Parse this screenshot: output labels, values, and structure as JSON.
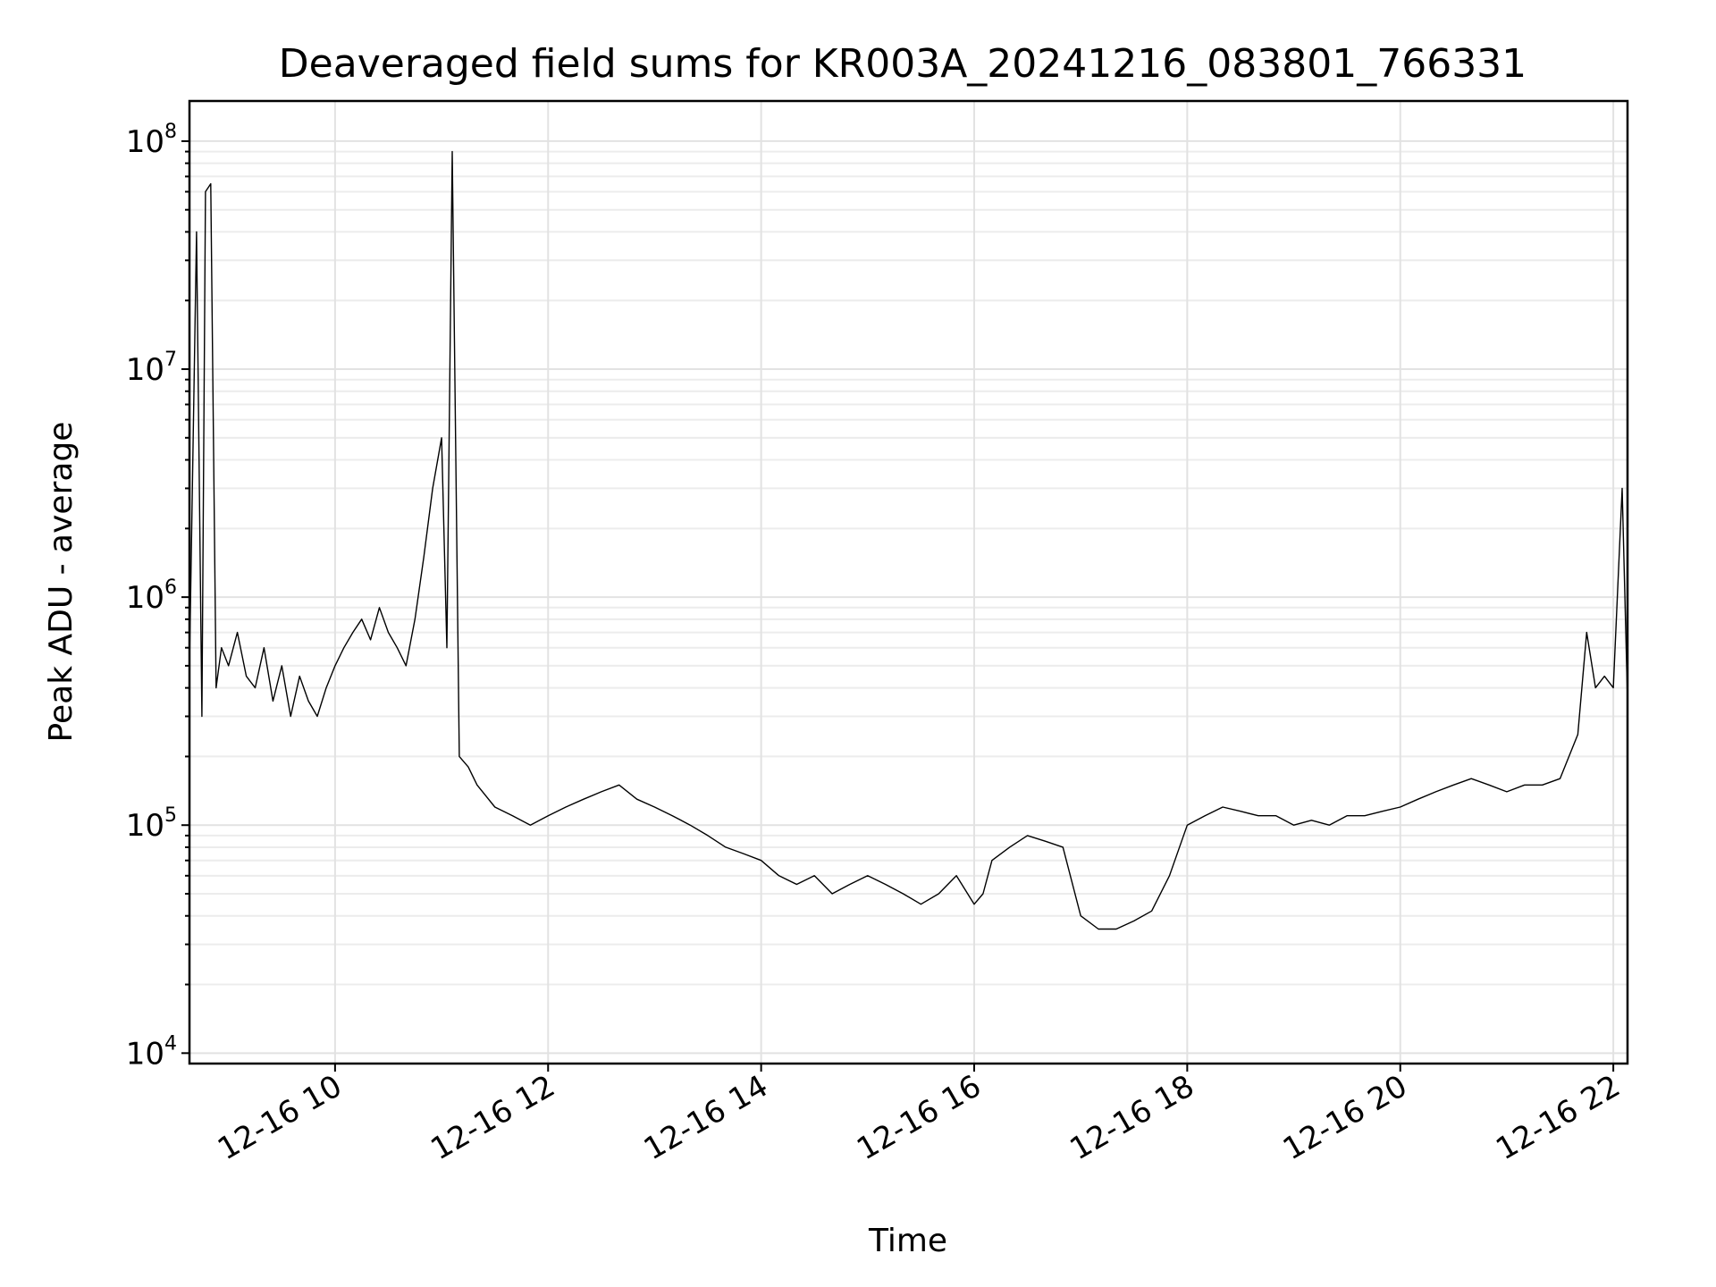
{
  "chart_data": {
    "type": "line",
    "title": "Deaveraged field sums for KR003A_20241216_083801_766331",
    "xlabel": "Time",
    "ylabel": "Peak ADU - average",
    "yscale": "log",
    "xlim": [
      "2024-12-16 08:38",
      "2024-12-16 22:08"
    ],
    "ylim": [
      9000,
      150000000
    ],
    "grid": true,
    "x_ticks": [
      {
        "value": "2024-12-16 10:00",
        "label": "12-16 10"
      },
      {
        "value": "2024-12-16 12:00",
        "label": "12-16 12"
      },
      {
        "value": "2024-12-16 14:00",
        "label": "12-16 14"
      },
      {
        "value": "2024-12-16 16:00",
        "label": "12-16 16"
      },
      {
        "value": "2024-12-16 18:00",
        "label": "12-16 18"
      },
      {
        "value": "2024-12-16 20:00",
        "label": "12-16 20"
      },
      {
        "value": "2024-12-16 22:00",
        "label": "12-16 22"
      }
    ],
    "y_ticks": [
      {
        "value": 10000,
        "base": "10",
        "exp": "4"
      },
      {
        "value": 100000,
        "base": "10",
        "exp": "5"
      },
      {
        "value": 1000000,
        "base": "10",
        "exp": "6"
      },
      {
        "value": 10000000,
        "base": "10",
        "exp": "7"
      },
      {
        "value": 100000000,
        "base": "10",
        "exp": "8"
      }
    ],
    "series_color": "#000000",
    "series": [
      {
        "x": [
          "2024-12-16 08:38",
          "2024-12-16 08:42",
          "2024-12-16 08:45",
          "2024-12-16 08:47",
          "2024-12-16 08:50",
          "2024-12-16 08:53",
          "2024-12-16 08:56",
          "2024-12-16 09:00",
          "2024-12-16 09:05",
          "2024-12-16 09:10",
          "2024-12-16 09:15",
          "2024-12-16 09:20",
          "2024-12-16 09:25",
          "2024-12-16 09:30",
          "2024-12-16 09:35",
          "2024-12-16 09:40",
          "2024-12-16 09:45",
          "2024-12-16 09:50",
          "2024-12-16 09:55",
          "2024-12-16 10:00",
          "2024-12-16 10:05",
          "2024-12-16 10:10",
          "2024-12-16 10:15",
          "2024-12-16 10:20",
          "2024-12-16 10:25",
          "2024-12-16 10:30",
          "2024-12-16 10:35",
          "2024-12-16 10:40",
          "2024-12-16 10:45",
          "2024-12-16 10:50",
          "2024-12-16 10:55",
          "2024-12-16 11:00",
          "2024-12-16 11:03",
          "2024-12-16 11:06",
          "2024-12-16 11:10",
          "2024-12-16 11:15",
          "2024-12-16 11:20",
          "2024-12-16 11:30",
          "2024-12-16 11:40",
          "2024-12-16 11:50",
          "2024-12-16 12:00",
          "2024-12-16 12:10",
          "2024-12-16 12:20",
          "2024-12-16 12:30",
          "2024-12-16 12:40",
          "2024-12-16 12:50",
          "2024-12-16 13:00",
          "2024-12-16 13:10",
          "2024-12-16 13:20",
          "2024-12-16 13:30",
          "2024-12-16 13:40",
          "2024-12-16 13:50",
          "2024-12-16 14:00",
          "2024-12-16 14:10",
          "2024-12-16 14:20",
          "2024-12-16 14:30",
          "2024-12-16 14:40",
          "2024-12-16 14:50",
          "2024-12-16 15:00",
          "2024-12-16 15:10",
          "2024-12-16 15:20",
          "2024-12-16 15:30",
          "2024-12-16 15:40",
          "2024-12-16 15:50",
          "2024-12-16 16:00",
          "2024-12-16 16:05",
          "2024-12-16 16:10",
          "2024-12-16 16:20",
          "2024-12-16 16:30",
          "2024-12-16 16:40",
          "2024-12-16 16:50",
          "2024-12-16 17:00",
          "2024-12-16 17:10",
          "2024-12-16 17:20",
          "2024-12-16 17:30",
          "2024-12-16 17:40",
          "2024-12-16 17:50",
          "2024-12-16 18:00",
          "2024-12-16 18:10",
          "2024-12-16 18:20",
          "2024-12-16 18:30",
          "2024-12-16 18:40",
          "2024-12-16 18:50",
          "2024-12-16 19:00",
          "2024-12-16 19:10",
          "2024-12-16 19:20",
          "2024-12-16 19:30",
          "2024-12-16 19:40",
          "2024-12-16 19:50",
          "2024-12-16 20:00",
          "2024-12-16 20:10",
          "2024-12-16 20:20",
          "2024-12-16 20:30",
          "2024-12-16 20:40",
          "2024-12-16 20:50",
          "2024-12-16 21:00",
          "2024-12-16 21:10",
          "2024-12-16 21:20",
          "2024-12-16 21:30",
          "2024-12-16 21:40",
          "2024-12-16 21:45",
          "2024-12-16 21:50",
          "2024-12-16 21:55",
          "2024-12-16 22:00",
          "2024-12-16 22:05",
          "2024-12-16 22:08"
        ],
        "y": [
          500000,
          40000000,
          300000,
          60000000,
          65000000,
          400000,
          600000,
          500000,
          700000,
          450000,
          400000,
          600000,
          350000,
          500000,
          300000,
          450000,
          350000,
          300000,
          400000,
          500000,
          600000,
          700000,
          800000,
          650000,
          900000,
          700000,
          600000,
          500000,
          800000,
          1500000,
          3000000,
          5000000,
          600000,
          90000000,
          200000,
          180000,
          150000,
          120000,
          110000,
          100000,
          110000,
          120000,
          130000,
          140000,
          150000,
          130000,
          120000,
          110000,
          100000,
          90000,
          80000,
          75000,
          70000,
          60000,
          55000,
          60000,
          50000,
          55000,
          60000,
          55000,
          50000,
          45000,
          50000,
          60000,
          45000,
          50000,
          70000,
          80000,
          90000,
          85000,
          80000,
          40000,
          35000,
          35000,
          38000,
          42000,
          60000,
          100000,
          110000,
          120000,
          115000,
          110000,
          110000,
          100000,
          105000,
          100000,
          110000,
          110000,
          115000,
          120000,
          130000,
          140000,
          150000,
          160000,
          150000,
          140000,
          150000,
          150000,
          160000,
          250000,
          700000,
          400000,
          450000,
          400000,
          3000000,
          350000
        ]
      }
    ]
  }
}
